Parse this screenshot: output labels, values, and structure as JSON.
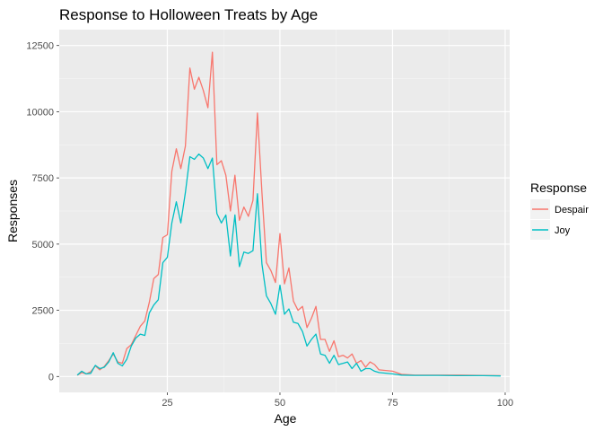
{
  "chart_data": {
    "type": "line",
    "title": "Response to Holloween Treats by Age",
    "xlabel": "Age",
    "ylabel": "Responses",
    "xlim": [
      1,
      101
    ],
    "ylim": [
      -600,
      13100
    ],
    "x_ticks": [
      25,
      50,
      75,
      100
    ],
    "x_tick_labels": [
      "25",
      "50",
      "75",
      "100"
    ],
    "y_ticks": [
      0,
      2500,
      5000,
      7500,
      10000,
      12500
    ],
    "y_tick_labels": [
      "0",
      "2500",
      "5000",
      "7500",
      "10000",
      "12500"
    ],
    "grid": true,
    "legend": {
      "title": "Response",
      "placement": "right"
    },
    "series": [
      {
        "name": "Despair",
        "color": "#f8766d",
        "x": [
          5,
          6,
          7,
          8,
          9,
          10,
          11,
          12,
          13,
          14,
          15,
          16,
          17,
          18,
          19,
          20,
          21,
          22,
          23,
          24,
          25,
          26,
          27,
          28,
          29,
          30,
          31,
          32,
          33,
          34,
          35,
          36,
          37,
          38,
          39,
          40,
          41,
          42,
          43,
          44,
          45,
          46,
          47,
          48,
          49,
          50,
          51,
          52,
          53,
          54,
          55,
          56,
          57,
          58,
          59,
          60,
          61,
          62,
          63,
          64,
          65,
          66,
          67,
          68,
          69,
          70,
          71,
          72,
          75,
          77,
          80,
          85,
          90,
          95,
          99
        ],
        "values": [
          50,
          150,
          100,
          180,
          400,
          250,
          380,
          600,
          850,
          550,
          500,
          1050,
          1200,
          1550,
          1900,
          2100,
          2800,
          3700,
          3850,
          5250,
          5350,
          7750,
          8600,
          7850,
          8700,
          11650,
          10850,
          11300,
          10800,
          10150,
          12250,
          8000,
          8150,
          7600,
          6250,
          7600,
          5900,
          6400,
          6050,
          6650,
          9950,
          6950,
          4300,
          4000,
          3550,
          5400,
          3500,
          4100,
          2850,
          2500,
          2650,
          1850,
          2200,
          2650,
          1400,
          1400,
          950,
          1350,
          750,
          800,
          700,
          850,
          500,
          600,
          350,
          550,
          450,
          250,
          200,
          80,
          50,
          50,
          50,
          40,
          30
        ]
      },
      {
        "name": "Joy",
        "color": "#00bfc4",
        "x": [
          5,
          6,
          7,
          8,
          9,
          10,
          11,
          12,
          13,
          14,
          15,
          16,
          17,
          18,
          19,
          20,
          21,
          22,
          23,
          24,
          25,
          26,
          27,
          28,
          29,
          30,
          31,
          32,
          33,
          34,
          35,
          36,
          37,
          38,
          39,
          40,
          41,
          42,
          43,
          44,
          45,
          46,
          47,
          48,
          49,
          50,
          51,
          52,
          53,
          54,
          55,
          56,
          57,
          58,
          59,
          60,
          61,
          62,
          63,
          64,
          65,
          66,
          67,
          68,
          69,
          70,
          71,
          72,
          75,
          77,
          80,
          85,
          90,
          95,
          99
        ],
        "values": [
          50,
          200,
          100,
          120,
          420,
          300,
          350,
          550,
          900,
          500,
          400,
          650,
          1150,
          1450,
          1600,
          1550,
          2400,
          2700,
          2900,
          4300,
          4500,
          5800,
          6600,
          5800,
          6950,
          8300,
          8200,
          8400,
          8250,
          7850,
          8250,
          6150,
          5800,
          6100,
          4550,
          6100,
          4150,
          4700,
          4650,
          4750,
          6900,
          4250,
          3050,
          2750,
          2350,
          3450,
          2350,
          2550,
          2050,
          2000,
          1700,
          1150,
          1400,
          1600,
          850,
          800,
          500,
          800,
          450,
          500,
          550,
          300,
          500,
          200,
          300,
          300,
          200,
          150,
          100,
          50,
          40,
          40,
          30,
          30,
          20
        ]
      }
    ]
  }
}
